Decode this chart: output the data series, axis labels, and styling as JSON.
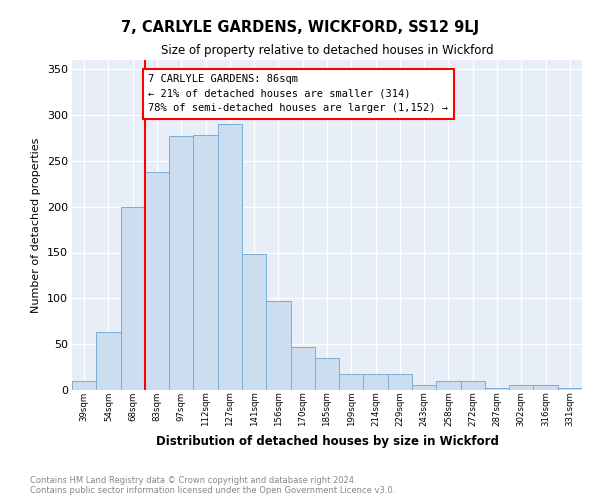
{
  "title": "7, CARLYLE GARDENS, WICKFORD, SS12 9LJ",
  "subtitle": "Size of property relative to detached houses in Wickford",
  "xlabel": "Distribution of detached houses by size in Wickford",
  "ylabel": "Number of detached properties",
  "bar_color": "#ccddf0",
  "bar_edge_color": "#7badd4",
  "categories": [
    "39sqm",
    "54sqm",
    "68sqm",
    "83sqm",
    "97sqm",
    "112sqm",
    "127sqm",
    "141sqm",
    "156sqm",
    "170sqm",
    "185sqm",
    "199sqm",
    "214sqm",
    "229sqm",
    "243sqm",
    "258sqm",
    "272sqm",
    "287sqm",
    "302sqm",
    "316sqm",
    "331sqm"
  ],
  "values": [
    10,
    63,
    200,
    238,
    277,
    278,
    290,
    148,
    97,
    47,
    35,
    17,
    17,
    17,
    5,
    10,
    10,
    2,
    5,
    5,
    2
  ],
  "ylim": [
    0,
    360
  ],
  "yticks": [
    0,
    50,
    100,
    150,
    200,
    250,
    300,
    350
  ],
  "red_line_index": 3,
  "annotation_title": "7 CARLYLE GARDENS: 86sqm",
  "annotation_line1": "← 21% of detached houses are smaller (314)",
  "annotation_line2": "78% of semi-detached houses are larger (1,152) →",
  "footer_line1": "Contains HM Land Registry data © Crown copyright and database right 2024.",
  "footer_line2": "Contains public sector information licensed under the Open Government Licence v3.0.",
  "plot_bg_color": "#e8eef8"
}
